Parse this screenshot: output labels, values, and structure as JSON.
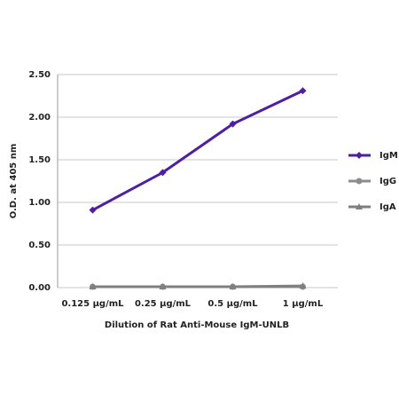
{
  "chart_data": {
    "type": "line",
    "x_label": "Dilution of Rat Anti-Mouse IgM-UNLB",
    "y_label": "O.D. at 405 nm",
    "categories": [
      "0.125 µg/mL",
      "0.25 µg/mL",
      "0.5 µg/mL",
      "1 µg/mL"
    ],
    "series": [
      {
        "name": "IgM",
        "color": "#4f1fa3",
        "marker": "diamond",
        "values": [
          0.91,
          1.35,
          1.92,
          2.31
        ]
      },
      {
        "name": "IgG",
        "color": "#8c8c8c",
        "marker": "circle",
        "values": [
          0.01,
          0.01,
          0.01,
          0.01
        ]
      },
      {
        "name": "IgA",
        "color": "#7f7f7f",
        "marker": "triangle",
        "values": [
          0.01,
          0.01,
          0.01,
          0.02
        ]
      }
    ],
    "ylim": [
      0,
      2.5
    ],
    "yticks": [
      {
        "value": 0,
        "label": "0.00"
      },
      {
        "value": 0.5,
        "label": "0.50"
      },
      {
        "value": 1,
        "label": "1.00"
      },
      {
        "value": 1.5,
        "label": "1.50"
      },
      {
        "value": 2,
        "label": "2.00"
      },
      {
        "value": 2.5,
        "label": "2.50"
      }
    ],
    "grid": true,
    "legend": "right"
  }
}
